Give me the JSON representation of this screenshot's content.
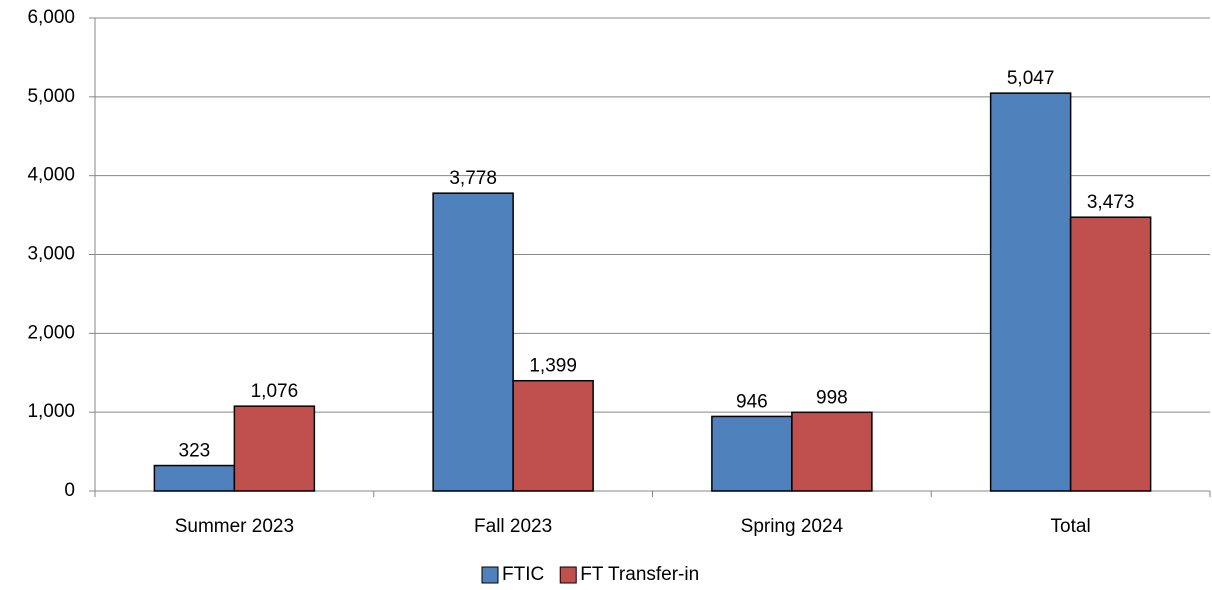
{
  "chart_data": {
    "type": "bar",
    "categories": [
      "Summer 2023",
      "Fall 2023",
      "Spring 2024",
      "Total"
    ],
    "series": [
      {
        "name": "FTIC",
        "color": "#4f81bd",
        "values": [
          323,
          3778,
          946,
          5047
        ],
        "value_labels": [
          "323",
          "3,778",
          "946",
          "5,047"
        ]
      },
      {
        "name": "FT Transfer-in",
        "color": "#c0504d",
        "values": [
          1076,
          1399,
          998,
          3473
        ],
        "value_labels": [
          "1,076",
          "1,399",
          "998",
          "3,473"
        ]
      }
    ],
    "ylim": [
      0,
      6000
    ],
    "yticks": [
      0,
      {
        "value": 1000,
        "label": "1,000"
      },
      {
        "value": 2000,
        "label": "2,000"
      },
      {
        "value": 3000,
        "label": "3,000"
      },
      {
        "value": 4000,
        "label": "4,000"
      },
      {
        "value": 5000,
        "label": "5,000"
      },
      {
        "value": 6000,
        "label": "6,000"
      }
    ],
    "grid": true,
    "legend": "bottom"
  }
}
